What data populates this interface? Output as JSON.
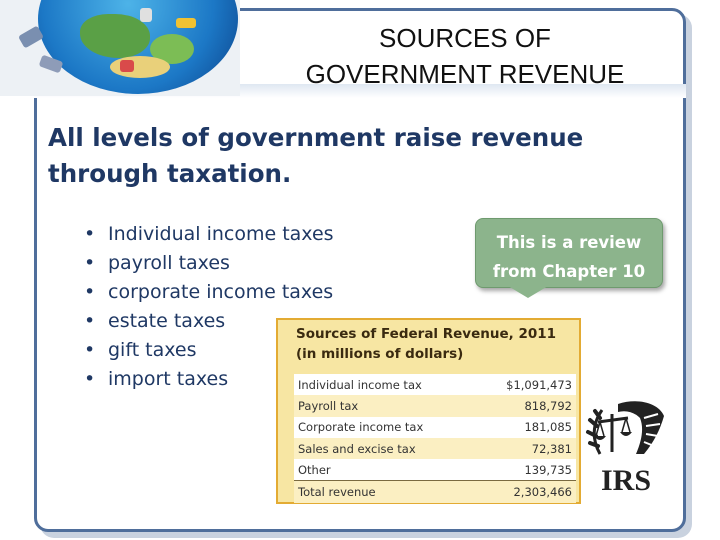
{
  "title": {
    "line1": "SOURCES OF",
    "line2": "GOVERNMENT REVENUE"
  },
  "heading": {
    "line1": "All levels of government raise revenue",
    "line2": "through taxation."
  },
  "bullets": [
    "Individual income taxes",
    "payroll taxes",
    "corporate income taxes",
    "estate taxes",
    "gift taxes",
    "import taxes"
  ],
  "callout": {
    "line1": "This is a review",
    "line2": "from Chapter 10"
  },
  "table": {
    "title_line1": "Sources of Federal Revenue, 2011",
    "title_line2": "(in millions of dollars)",
    "rows": [
      {
        "label": "Individual income tax",
        "value": "$1,091,473"
      },
      {
        "label": "Payroll tax",
        "value": "818,792"
      },
      {
        "label": "Corporate income tax",
        "value": "181,085"
      },
      {
        "label": "Sales and excise tax",
        "value": "72,381"
      },
      {
        "label": "Other",
        "value": "139,735"
      },
      {
        "label": "Total revenue",
        "value": "2,303,466"
      }
    ]
  },
  "logo": {
    "text": "IRS",
    "icon": "irs-eagle-scales-icon"
  },
  "colors": {
    "frame": "#4f6e9b",
    "heading_text": "#1f3864",
    "callout_bg": "#8cb48c",
    "table_bg": "#f7e6a3",
    "table_border": "#e3ab33"
  }
}
